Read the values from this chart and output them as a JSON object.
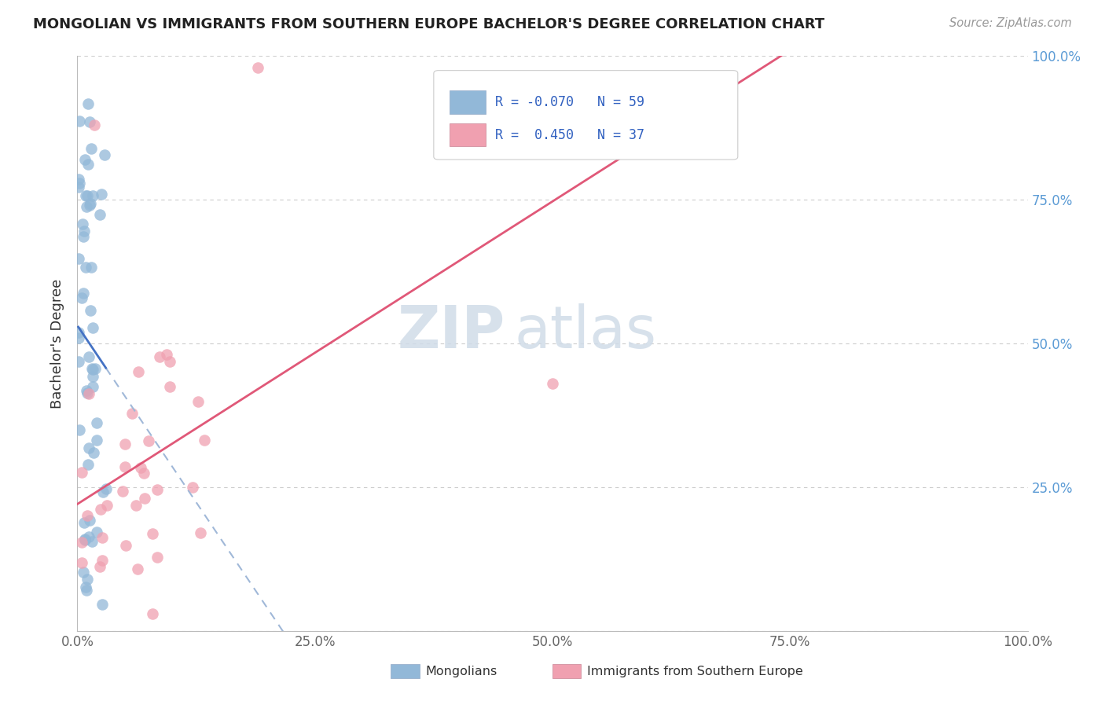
{
  "title": "MONGOLIAN VS IMMIGRANTS FROM SOUTHERN EUROPE BACHELOR'S DEGREE CORRELATION CHART",
  "source": "Source: ZipAtlas.com",
  "ylabel": "Bachelor's Degree",
  "bottom_legend": [
    "Mongolians",
    "Immigrants from Southern Europe"
  ],
  "mongolian_color": "#92b8d8",
  "southern_color": "#f0a0b0",
  "mongolian_line_color": "#4472c4",
  "southern_line_color": "#e05878",
  "mongolian_line_dash_color": "#a0b8d8",
  "background_color": "#ffffff",
  "grid_color": "#cccccc",
  "R_mongolian": -0.07,
  "R_southern": 0.45,
  "N_mongolian": 59,
  "N_southern": 37,
  "watermark_color": "#d0dce8",
  "ytick_color": "#5b9bd5",
  "xtick_color": "#666666"
}
